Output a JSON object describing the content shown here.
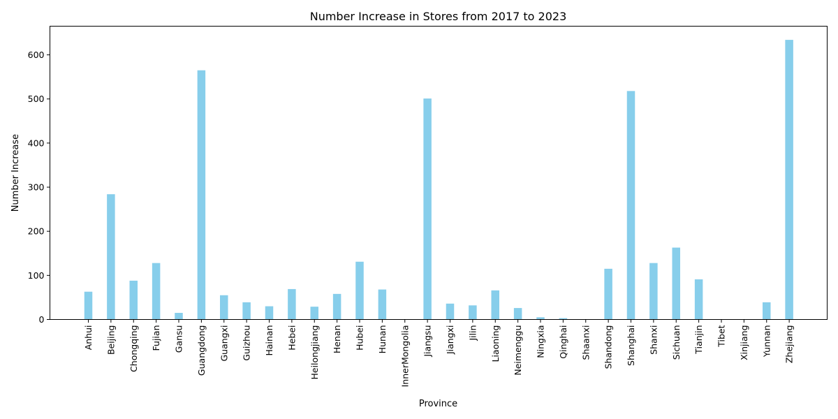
{
  "chart_data": {
    "type": "bar",
    "title": "Number Increase in Stores from 2017 to 2023",
    "xlabel": "Province",
    "ylabel": "Number Increase",
    "ylim": [
      0,
      665
    ],
    "yticks": [
      0,
      100,
      200,
      300,
      400,
      500,
      600
    ],
    "grid": false,
    "bar_color": "#87ceeb",
    "categories": [
      "Anhui",
      "Beijing",
      "Chongqing",
      "Fujian",
      "Gansu",
      "Guangdong",
      "Guangxi",
      "Guizhou",
      "Hainan",
      "Hebei",
      "Heilongjiang",
      "Henan",
      "Hubei",
      "Hunan",
      "InnerMongolia",
      "Jiangsu",
      "Jiangxi",
      "Jilin",
      "Liaoning",
      "Neimenggu",
      "Ningxia",
      "Qinghai",
      "Shaanxi",
      "Shandong",
      "Shanghai",
      "Shanxi",
      "Sichuan",
      "Tianjin",
      "Tibet",
      "Xinjiang",
      "Yunnan",
      "Zhejiang"
    ],
    "values": [
      63,
      284,
      88,
      128,
      15,
      565,
      55,
      39,
      30,
      69,
      29,
      58,
      131,
      68,
      0,
      501,
      36,
      32,
      66,
      26,
      5,
      3,
      0,
      115,
      518,
      128,
      163,
      91,
      0,
      0,
      39,
      634
    ]
  }
}
